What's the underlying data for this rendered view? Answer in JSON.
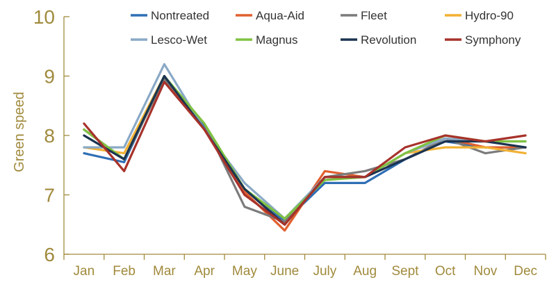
{
  "chart_data": {
    "type": "line",
    "title": "",
    "xlabel": "",
    "ylabel": "Green speed",
    "ylim": [
      6,
      10
    ],
    "yticks": [
      "6",
      "7",
      "8",
      "9",
      "10"
    ],
    "grid": false,
    "legend_placement": "top",
    "categories": [
      "Jan",
      "Feb",
      "Mar",
      "Apr",
      "May",
      "June",
      "July",
      "Aug",
      "Sept",
      "Oct",
      "Nov",
      "Dec"
    ],
    "series": [
      {
        "name": "Nontreated",
        "color": "#2f6fb5",
        "values": [
          7.7,
          7.55,
          9.0,
          8.15,
          7.1,
          6.55,
          7.2,
          7.2,
          7.6,
          7.9,
          7.8,
          7.8
        ]
      },
      {
        "name": "Aqua-Aid",
        "color": "#e0602f",
        "values": [
          8.1,
          7.6,
          8.95,
          8.1,
          7.05,
          6.4,
          7.4,
          7.3,
          7.7,
          7.95,
          7.8,
          7.8
        ]
      },
      {
        "name": "Fleet",
        "color": "#7b7b7b",
        "values": [
          8.1,
          7.6,
          8.95,
          8.2,
          6.8,
          6.55,
          7.3,
          7.4,
          7.6,
          7.95,
          7.7,
          7.8
        ]
      },
      {
        "name": "Hydro-90",
        "color": "#f2b134",
        "values": [
          7.8,
          7.7,
          9.0,
          8.1,
          7.1,
          6.5,
          7.3,
          7.3,
          7.7,
          7.8,
          7.8,
          7.7
        ]
      },
      {
        "name": "Lesco-Wet",
        "color": "#8aa9c6",
        "values": [
          7.8,
          7.8,
          9.2,
          8.1,
          7.2,
          6.6,
          7.3,
          7.3,
          7.7,
          7.95,
          7.9,
          7.9
        ]
      },
      {
        "name": "Magnus",
        "color": "#7fc241",
        "values": [
          8.1,
          7.6,
          9.0,
          8.2,
          7.1,
          6.6,
          7.25,
          7.3,
          7.7,
          8.0,
          7.9,
          7.9
        ]
      },
      {
        "name": "Revolution",
        "color": "#1b3350",
        "values": [
          8.0,
          7.6,
          9.0,
          8.1,
          7.1,
          6.5,
          7.3,
          7.3,
          7.6,
          7.9,
          7.9,
          7.8
        ]
      },
      {
        "name": "Symphony",
        "color": "#a7322b",
        "values": [
          8.2,
          7.4,
          8.9,
          8.1,
          7.0,
          6.5,
          7.3,
          7.3,
          7.8,
          8.0,
          7.9,
          8.0
        ]
      }
    ]
  }
}
